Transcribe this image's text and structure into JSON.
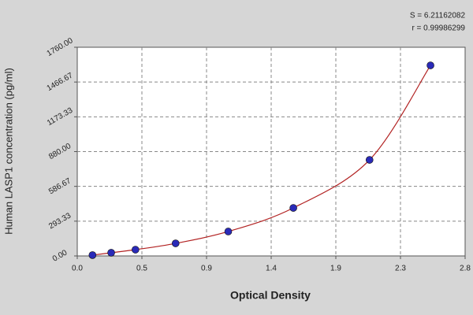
{
  "chart_data": {
    "type": "scatter",
    "x_label": "Optical Density",
    "y_label": "Human LASP1 concentration (pg/ml)",
    "annotations": [
      "S = 6.21162082",
      "r = 0.99986299"
    ],
    "x": [
      0.11,
      0.245,
      0.42,
      0.71,
      1.09,
      1.56,
      2.11,
      2.55
    ],
    "values": [
      7,
      27,
      53,
      106,
      206,
      405,
      810,
      1607
    ],
    "color": "#2a2ab8",
    "line_color": "#b22222",
    "xlim": [
      0,
      2.8
    ],
    "xticks": [
      {
        "value": 0,
        "label": "0.0"
      },
      {
        "value": 0.4667,
        "label": "0.5"
      },
      {
        "value": 0.9333,
        "label": "0.9"
      },
      1.4,
      {
        "value": 1.8667,
        "label": "1.9"
      },
      {
        "value": 2.3333,
        "label": "2.3"
      },
      2.8
    ],
    "ylim": [
      0,
      1760
    ],
    "yticks": [
      {
        "value": 0,
        "label": "0.00"
      },
      293.33,
      586.67,
      {
        "value": 880,
        "label": "880.00"
      },
      1173.33,
      1466.67,
      {
        "value": 1760,
        "label": "1760.00"
      }
    ],
    "grid": true
  }
}
